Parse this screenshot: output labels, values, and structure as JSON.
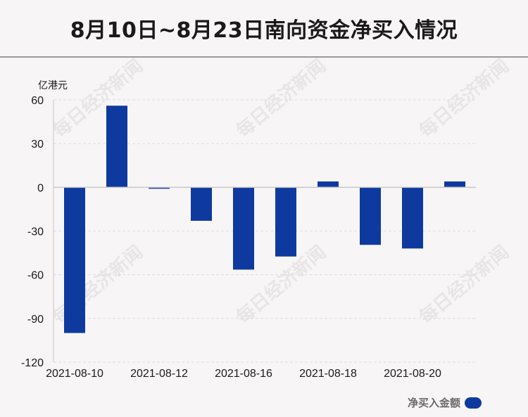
{
  "title": "8月10日~8月23日南向资金净买入情况",
  "watermark": "每日经济新闻",
  "colors": {
    "bar": "#0e3aa0",
    "axis": "#c8c8c8",
    "grid": "#e0dde0",
    "text": "#1a1a1a"
  },
  "chart_data": {
    "type": "bar",
    "ylabel": "亿港元",
    "ylim": [
      -120,
      60
    ],
    "yticks": [
      60,
      30,
      0,
      -30,
      -60,
      -90,
      -120
    ],
    "grid": true,
    "legend_position": "bottom-right",
    "x_tick_labels": [
      "2021-08-10",
      "2021-08-12",
      "2021-08-16",
      "2021-08-18",
      "2021-08-20"
    ],
    "categories": [
      "2021-08-10",
      "2021-08-11",
      "2021-08-12",
      "2021-08-13",
      "2021-08-16",
      "2021-08-17",
      "2021-08-18",
      "2021-08-19",
      "2021-08-20",
      "2021-08-23"
    ],
    "series": [
      {
        "name": "净买入金额",
        "values": [
          -100,
          56,
          -1,
          -23,
          -56.5,
          -47.5,
          4,
          -39.5,
          -42,
          4
        ]
      }
    ]
  }
}
